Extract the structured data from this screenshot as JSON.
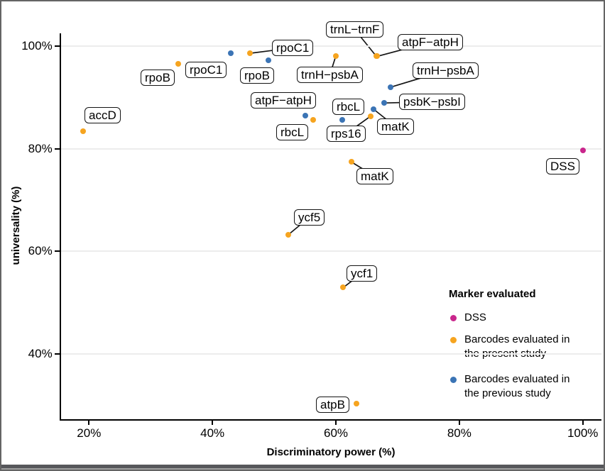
{
  "chart_data": {
    "type": "scatter",
    "title": "",
    "xlabel": "Discriminatory power (%)",
    "ylabel": "universality (%)",
    "xlim": [
      15.3,
      103
    ],
    "ylim": [
      27,
      102.5
    ],
    "x_ticks": [
      {
        "value": 20,
        "label": "20%"
      },
      {
        "value": 40,
        "label": "40%"
      },
      {
        "value": 60,
        "label": "60%"
      },
      {
        "value": 80,
        "label": "80%"
      },
      {
        "value": 100,
        "label": "100%"
      }
    ],
    "y_ticks": [
      {
        "value": 40,
        "label": "40%"
      },
      {
        "value": 60,
        "label": "60%"
      },
      {
        "value": 80,
        "label": "80%"
      },
      {
        "value": 100,
        "label": "100%"
      }
    ],
    "grid": {
      "horizontal": true,
      "vertical": false,
      "color": "#ececec"
    },
    "legend": {
      "title": "Marker evaluated",
      "position": "inside-bottom-right",
      "items": [
        {
          "label": "DSS",
          "color": "#C9268C"
        },
        {
          "label": "Barcodes evaluated in\nthe present study",
          "color": "#F6A41F"
        },
        {
          "label": "Barcodes evaluated in\nthe previous study",
          "color": "#3B74B5"
        }
      ]
    },
    "series": [
      {
        "name": "DSS",
        "color": "#C9268C",
        "points": [
          {
            "marker": "DSS",
            "x": 100.0,
            "y": 79.6,
            "label_box": [
              767,
              221
            ],
            "connector": false
          }
        ]
      },
      {
        "name": "Barcodes evaluated in the present study",
        "color": "#F6A41F",
        "points": [
          {
            "marker": "accD",
            "x": 19.1,
            "y": 83.4,
            "label_box": [
              117,
              149
            ],
            "connector": false
          },
          {
            "marker": "rpoB",
            "x": 34.5,
            "y": 96.5,
            "label_box": [
              196,
              96
            ],
            "connector": false
          },
          {
            "marker": "rpoC1",
            "x": 46.1,
            "y": 98.6,
            "label_box": [
              381,
              54
            ],
            "connector": true
          },
          {
            "marker": "trnH−psbA",
            "x": 60.0,
            "y": 98.1,
            "label_box": [
              416,
              92
            ],
            "connector": true
          },
          {
            "marker": "trnL−trnF",
            "x": 66.5,
            "y": 98.1,
            "label_box": [
              457,
              28
            ],
            "connector": true
          },
          {
            "marker": "atpF−atpH",
            "x": 66.7,
            "y": 98.0,
            "label_box": [
              558,
              46
            ],
            "connector": true
          },
          {
            "marker": "rbcL",
            "x": 56.3,
            "y": 85.6,
            "label_box": [
              387,
              173
            ],
            "connector": false
          },
          {
            "marker": "rps16",
            "x": 65.6,
            "y": 86.3,
            "label_box": [
              458,
              175
            ],
            "connector": true
          },
          {
            "marker": "matK",
            "x": 62.5,
            "y": 77.4,
            "label_box": [
              500,
              235
            ],
            "connector": true
          },
          {
            "marker": "ycf5",
            "x": 52.3,
            "y": 63.2,
            "label_box": [
              412,
              293
            ],
            "connector": true
          },
          {
            "marker": "ycf1",
            "x": 61.2,
            "y": 52.9,
            "label_box": [
              486,
              372
            ],
            "connector": true
          },
          {
            "marker": "atpB",
            "x": 63.3,
            "y": 30.2,
            "label_box": [
              443,
              557
            ],
            "connector": false
          }
        ]
      },
      {
        "name": "Barcodes evaluated in the previous study",
        "color": "#3B74B5",
        "points": [
          {
            "marker": "rpoC1",
            "x": 43.0,
            "y": 98.6,
            "label_box": [
              259,
              85
            ],
            "connector": false
          },
          {
            "marker": "rpoB",
            "x": 49.1,
            "y": 97.2,
            "label_box": [
              336,
              93
            ],
            "connector": false
          },
          {
            "marker": "atpF−atpH",
            "x": 55.1,
            "y": 86.4,
            "label_box": [
              351,
              128
            ],
            "connector": false
          },
          {
            "marker": "rbcL",
            "x": 61.0,
            "y": 85.6,
            "label_box": [
              466,
              137
            ],
            "connector": false
          },
          {
            "marker": "matK",
            "x": 66.1,
            "y": 87.7,
            "label_box": [
              529,
              165
            ],
            "connector": true
          },
          {
            "marker": "psbK−psbI",
            "x": 67.8,
            "y": 88.9,
            "label_box": [
              560,
              130
            ],
            "connector": true
          },
          {
            "marker": "trnH−psbA",
            "x": 68.9,
            "y": 92.0,
            "label_box": [
              579,
              86
            ],
            "connector": true
          }
        ]
      }
    ]
  }
}
